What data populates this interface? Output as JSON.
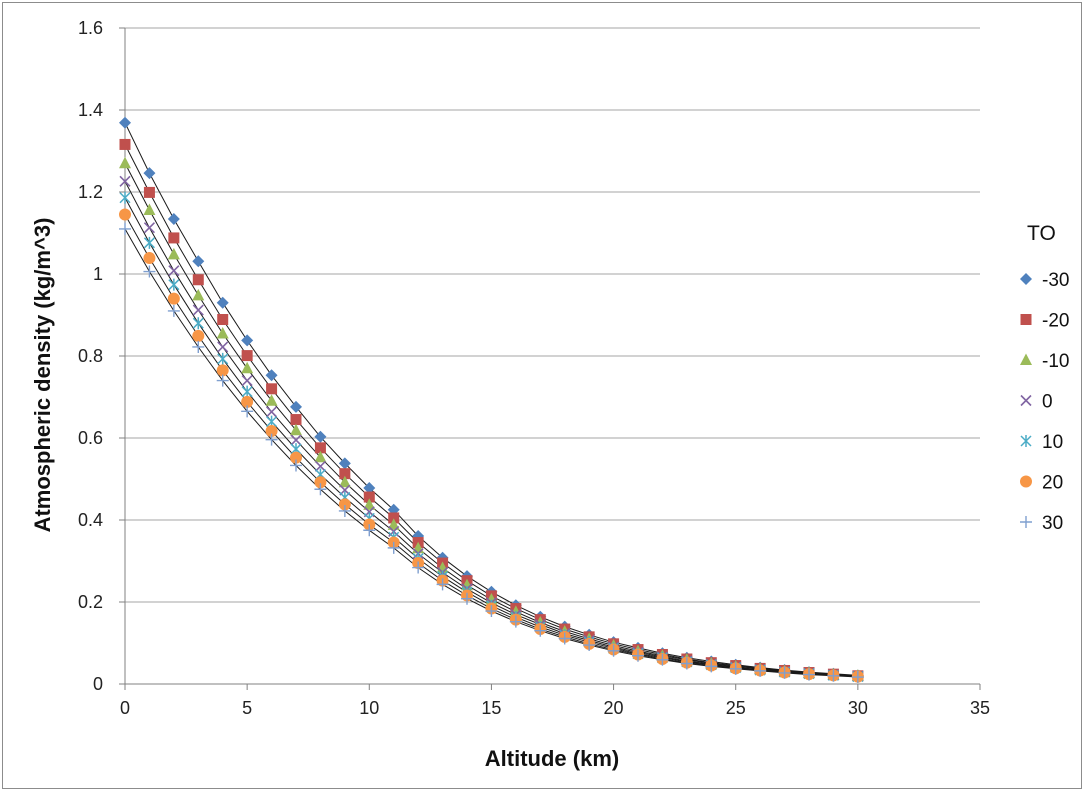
{
  "chart_data": {
    "type": "scatter",
    "xlabel": "Altitude (km)",
    "ylabel": "Atmospheric density (kg/m^3)",
    "xlim": [
      0,
      35
    ],
    "ylim": [
      0,
      1.6
    ],
    "x_ticks": [
      "0",
      "5",
      "10",
      "15",
      "20",
      "25",
      "30",
      "35"
    ],
    "y_ticks": [
      "0",
      "0.2",
      "0.4",
      "0.6",
      "0.8",
      "1",
      "1.2",
      "1.4",
      "1.6"
    ],
    "grid": "horizontal",
    "legend_title": "TO",
    "legend_position": "right",
    "x": [
      0,
      1,
      2,
      3,
      4,
      5,
      6,
      7,
      8,
      9,
      10,
      11,
      12,
      13,
      14,
      15,
      16,
      17,
      18,
      19,
      20,
      21,
      22,
      23,
      24,
      25,
      26,
      27,
      28,
      29,
      30
    ],
    "series": [
      {
        "name": "-30",
        "color": "#4F81BD",
        "marker": "diamond",
        "values": [
          1.369,
          1.246,
          1.134,
          1.031,
          0.93,
          0.838,
          0.753,
          0.676,
          0.603,
          0.538,
          0.478,
          0.425,
          0.361,
          0.308,
          0.263,
          0.225,
          0.192,
          0.164,
          0.14,
          0.12,
          0.102,
          0.088,
          0.075,
          0.064,
          0.055,
          0.047,
          0.04,
          0.034,
          0.029,
          0.025,
          0.021
        ]
      },
      {
        "name": "-20",
        "color": "#C0504D",
        "marker": "square",
        "values": [
          1.316,
          1.199,
          1.088,
          0.986,
          0.889,
          0.801,
          0.72,
          0.645,
          0.576,
          0.513,
          0.456,
          0.405,
          0.345,
          0.295,
          0.252,
          0.215,
          0.184,
          0.157,
          0.134,
          0.115,
          0.098,
          0.084,
          0.072,
          0.061,
          0.052,
          0.045,
          0.038,
          0.033,
          0.028,
          0.024,
          0.02
        ]
      },
      {
        "name": "-10",
        "color": "#9BBB59",
        "marker": "triangle",
        "values": [
          1.27,
          1.156,
          1.048,
          0.948,
          0.855,
          0.77,
          0.691,
          0.619,
          0.553,
          0.492,
          0.437,
          0.388,
          0.331,
          0.283,
          0.241,
          0.206,
          0.176,
          0.15,
          0.128,
          0.11,
          0.094,
          0.08,
          0.069,
          0.059,
          0.05,
          0.043,
          0.037,
          0.031,
          0.027,
          0.023,
          0.02
        ]
      },
      {
        "name": "0",
        "color": "#8064A2",
        "marker": "x",
        "values": [
          1.226,
          1.113,
          1.008,
          0.912,
          0.822,
          0.74,
          0.664,
          0.595,
          0.531,
          0.473,
          0.42,
          0.372,
          0.318,
          0.272,
          0.232,
          0.198,
          0.169,
          0.145,
          0.123,
          0.106,
          0.09,
          0.077,
          0.066,
          0.056,
          0.048,
          0.041,
          0.035,
          0.03,
          0.026,
          0.022,
          0.019
        ]
      },
      {
        "name": "10",
        "color": "#4BACC6",
        "marker": "asterisk",
        "values": [
          1.186,
          1.076,
          0.974,
          0.88,
          0.793,
          0.713,
          0.64,
          0.573,
          0.511,
          0.455,
          0.404,
          0.358,
          0.306,
          0.262,
          0.224,
          0.191,
          0.163,
          0.139,
          0.119,
          0.102,
          0.087,
          0.074,
          0.064,
          0.054,
          0.047,
          0.04,
          0.034,
          0.029,
          0.025,
          0.021,
          0.018
        ]
      },
      {
        "name": "20",
        "color": "#F79646",
        "marker": "circle",
        "values": [
          1.145,
          1.039,
          0.94,
          0.849,
          0.765,
          0.688,
          0.617,
          0.552,
          0.492,
          0.438,
          0.389,
          0.345,
          0.295,
          0.252,
          0.216,
          0.184,
          0.157,
          0.134,
          0.115,
          0.098,
          0.084,
          0.072,
          0.061,
          0.052,
          0.045,
          0.038,
          0.033,
          0.028,
          0.024,
          0.021,
          0.018
        ]
      },
      {
        "name": "30",
        "color": "#7F9FCF",
        "marker": "plus",
        "values": [
          1.11,
          1.006,
          0.91,
          0.822,
          0.74,
          0.665,
          0.596,
          0.533,
          0.475,
          0.422,
          0.375,
          0.332,
          0.284,
          0.243,
          0.208,
          0.178,
          0.152,
          0.13,
          0.111,
          0.095,
          0.081,
          0.069,
          0.059,
          0.05,
          0.043,
          0.037,
          0.032,
          0.027,
          0.023,
          0.02,
          0.017
        ]
      }
    ]
  }
}
